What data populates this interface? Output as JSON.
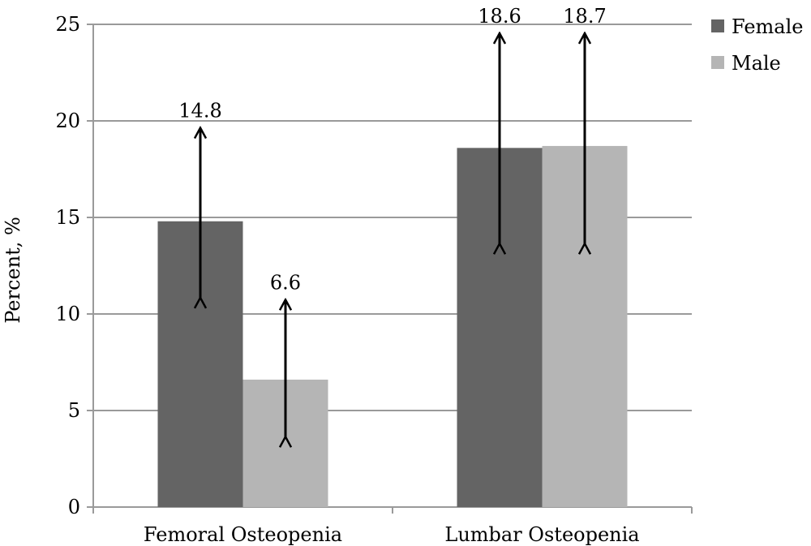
{
  "chart_data": {
    "type": "bar",
    "title": "",
    "xlabel": "",
    "ylabel": "Percent, %",
    "ylim": [
      0,
      25
    ],
    "yticks": [
      0,
      5,
      10,
      15,
      20,
      25
    ],
    "grid": true,
    "legend_position": "top-right",
    "categories": [
      "Femoral Osteopenia",
      "Lumbar Osteopenia"
    ],
    "series": [
      {
        "name": "Female",
        "color": "#646464",
        "values": [
          14.8,
          18.6
        ],
        "labels": [
          "14.8",
          "18.6"
        ],
        "error_low": [
          10.8,
          13.6
        ],
        "error_high": [
          19.6,
          24.5
        ]
      },
      {
        "name": "Male",
        "color": "#b5b5b5",
        "values": [
          6.6,
          18.7
        ],
        "labels": [
          "6.6",
          "18.7"
        ],
        "error_low": [
          3.6,
          13.6
        ],
        "error_high": [
          10.7,
          24.5
        ]
      }
    ]
  }
}
